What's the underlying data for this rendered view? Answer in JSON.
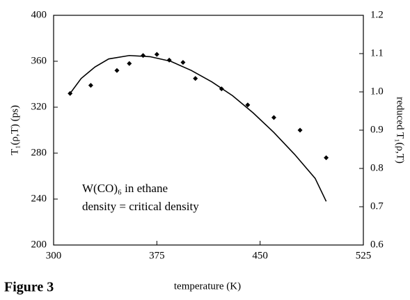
{
  "chart_data": {
    "type": "line",
    "caption": "Figure 3",
    "x_label": "temperature (K)",
    "y_label": "T₁(ρ,T)  (ps)",
    "y2_label": "reduced T₁(ρ,T)",
    "annotation": [
      "W(CO)₆  in ethane",
      "density = critical density"
    ],
    "xlim": [
      300,
      525
    ],
    "xticks": [
      300,
      375,
      450,
      525
    ],
    "ylim": [
      200,
      400
    ],
    "yticks": [
      200,
      240,
      280,
      320,
      360,
      400
    ],
    "y2lim": [
      0.6,
      1.2
    ],
    "y2ticks": [
      0.6,
      0.7,
      0.8,
      0.9,
      {
        "value": 1.0,
        "label": "1.0"
      },
      1.1,
      1.2
    ],
    "series": [
      {
        "mode": "line",
        "color": "#000000",
        "x": [
          312,
          320,
          330,
          340,
          355,
          370,
          385,
          400,
          415,
          430,
          445,
          460,
          475,
          490,
          498
        ],
        "values": [
          332,
          345,
          355,
          362,
          365,
          364,
          360,
          352,
          342,
          330,
          315,
          298,
          279,
          258,
          238
        ]
      },
      {
        "mode": "markers",
        "color": "#000000",
        "x": [
          312,
          327,
          346,
          355,
          365,
          375,
          384,
          394,
          403,
          422,
          441,
          460,
          479,
          498
        ],
        "values": [
          332,
          339,
          352,
          358,
          365,
          366,
          361,
          359,
          345,
          336,
          322,
          311,
          300,
          276
        ]
      }
    ]
  }
}
